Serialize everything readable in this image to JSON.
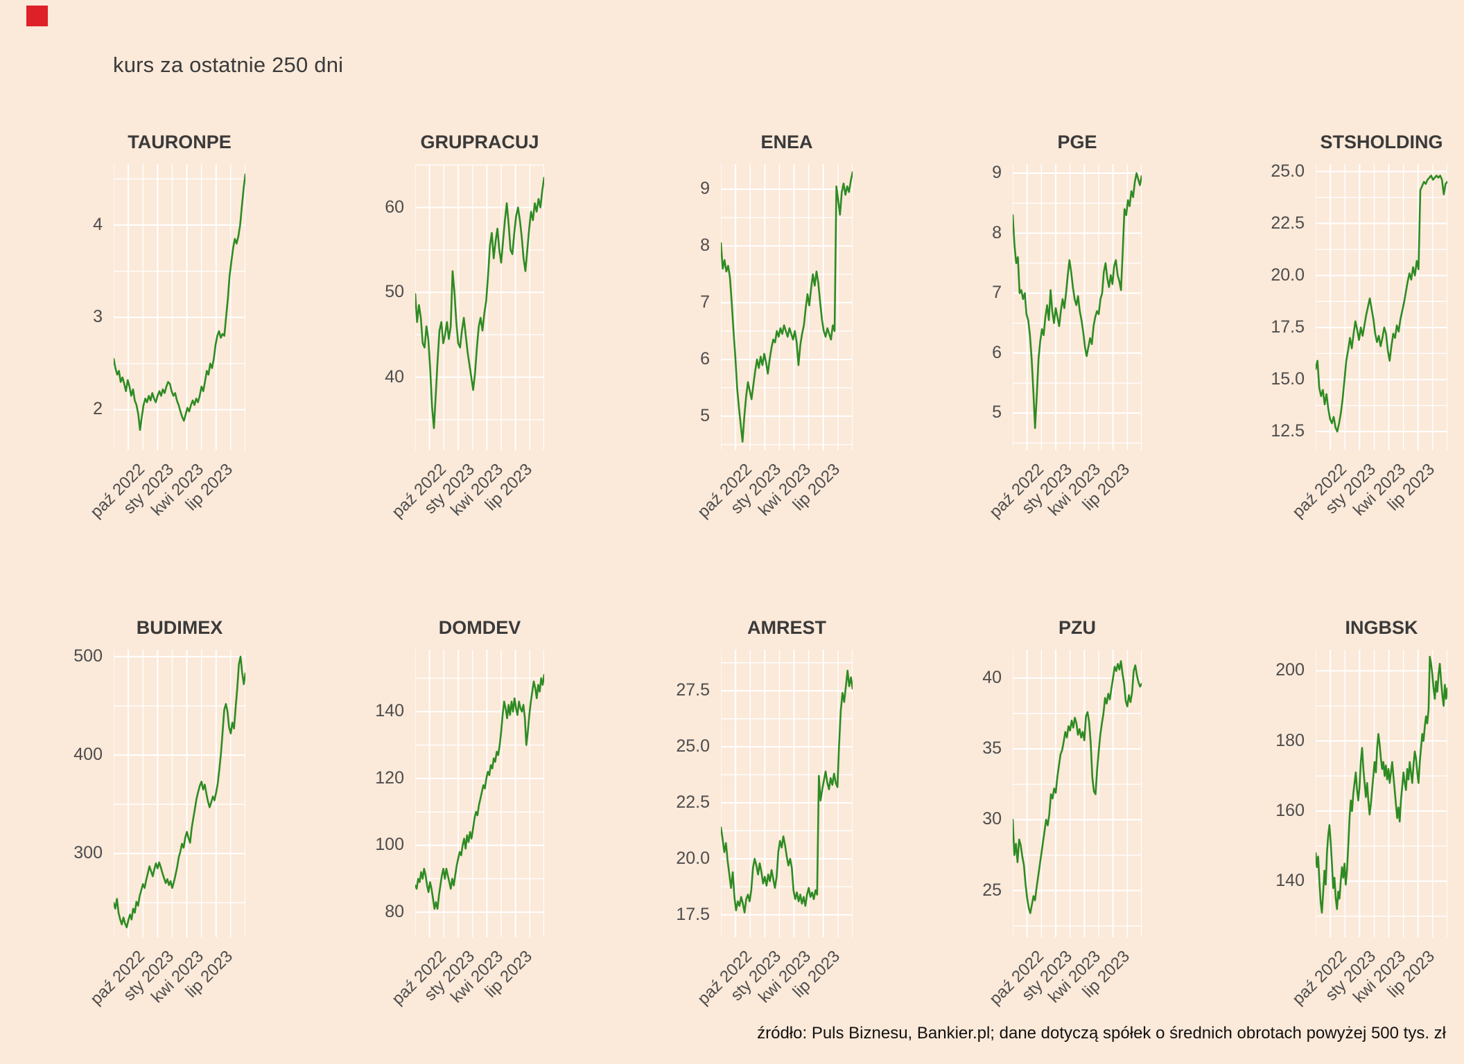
{
  "page": {
    "title": "kurs za ostatnie 250 dni",
    "source_note": "źródło: Puls Biznesu, Bankier.pl; dane dotyczą spółek o średnich obrotach powyżej 500 tys. zł",
    "colors": {
      "background": "#fbe9d9",
      "line": "#2d8b22",
      "grid": "#ffffff",
      "title_text": "#3a3a3a",
      "axis_text": "#4d4d4d",
      "note_text": "#111111",
      "marker": "#de2128"
    }
  },
  "x_tick_labels": [
    "paź 2022",
    "sty 2023",
    "kwi 2023",
    "lip 2023"
  ],
  "chart_data": [
    {
      "type": "line",
      "title": "TAURONPE",
      "ylim": [
        1.56,
        4.66
      ],
      "y_ticks": [
        2,
        3,
        4
      ],
      "y_tick_labels": [
        "2",
        "3",
        "4"
      ],
      "values": [
        2.55,
        2.45,
        2.38,
        2.42,
        2.3,
        2.35,
        2.28,
        2.2,
        2.32,
        2.25,
        2.15,
        2.22,
        2.1,
        2.05,
        1.95,
        1.78,
        1.92,
        2.05,
        2.12,
        2.08,
        2.15,
        2.1,
        2.18,
        2.12,
        2.08,
        2.15,
        2.2,
        2.15,
        2.22,
        2.18,
        2.25,
        2.3,
        2.28,
        2.2,
        2.15,
        2.18,
        2.1,
        2.05,
        1.98,
        1.92,
        1.88,
        1.95,
        2.02,
        1.98,
        2.05,
        2.1,
        2.05,
        2.12,
        2.08,
        2.15,
        2.25,
        2.2,
        2.3,
        2.42,
        2.38,
        2.5,
        2.45,
        2.55,
        2.7,
        2.8,
        2.85,
        2.78,
        2.82,
        2.8,
        3.0,
        3.2,
        3.45,
        3.6,
        3.75,
        3.85,
        3.8,
        3.88,
        4.0,
        4.2,
        4.4,
        4.55
      ]
    },
    {
      "type": "line",
      "title": "GRUPRACUJ",
      "ylim": [
        31.4,
        65.1
      ],
      "y_ticks": [
        40,
        50,
        60
      ],
      "y_tick_labels": [
        "40",
        "50",
        "60"
      ],
      "values": [
        49.8,
        46.5,
        48.5,
        47.0,
        44.0,
        43.5,
        46.0,
        44.5,
        41.0,
        36.5,
        34.0,
        38.0,
        42.0,
        45.5,
        46.5,
        44.0,
        45.0,
        46.5,
        44.5,
        46.0,
        52.5,
        50.0,
        46.5,
        44.0,
        43.5,
        45.5,
        47.0,
        45.0,
        43.0,
        41.5,
        40.0,
        38.5,
        40.5,
        43.5,
        46.0,
        47.0,
        45.5,
        47.5,
        49.0,
        52.0,
        55.5,
        57.0,
        54.0,
        56.0,
        57.5,
        55.0,
        53.5,
        56.0,
        58.5,
        60.5,
        58.0,
        55.0,
        54.5,
        57.0,
        59.0,
        60.0,
        58.5,
        56.5,
        54.0,
        52.5,
        55.0,
        57.5,
        59.5,
        58.5,
        60.5,
        59.5,
        61.0,
        60.0,
        62.0,
        63.5
      ]
    },
    {
      "type": "line",
      "title": "ENEA",
      "ylim": [
        4.4,
        9.44
      ],
      "y_ticks": [
        5,
        6,
        7,
        8,
        9
      ],
      "y_tick_labels": [
        "5",
        "6",
        "7",
        "8",
        "9"
      ],
      "values": [
        8.05,
        7.6,
        7.75,
        7.55,
        7.65,
        7.45,
        7.0,
        6.5,
        6.05,
        5.5,
        5.15,
        4.85,
        4.55,
        5.0,
        5.35,
        5.6,
        5.45,
        5.3,
        5.55,
        5.8,
        6.0,
        5.85,
        6.05,
        5.9,
        6.1,
        5.95,
        5.75,
        6.0,
        6.2,
        6.35,
        6.3,
        6.5,
        6.4,
        6.55,
        6.45,
        6.6,
        6.5,
        6.4,
        6.55,
        6.45,
        6.35,
        6.5,
        6.3,
        5.9,
        6.25,
        6.45,
        6.6,
        6.9,
        7.15,
        6.95,
        7.25,
        7.5,
        7.3,
        7.55,
        7.35,
        7.0,
        6.7,
        6.5,
        6.4,
        6.55,
        6.45,
        6.35,
        6.6,
        6.5,
        9.05,
        8.8,
        8.55,
        8.95,
        9.1,
        8.9,
        9.05,
        8.95,
        9.15,
        9.3
      ]
    },
    {
      "type": "line",
      "title": "PGE",
      "ylim": [
        4.38,
        9.15
      ],
      "y_ticks": [
        5,
        6,
        7,
        8,
        9
      ],
      "y_tick_labels": [
        "5",
        "6",
        "7",
        "8",
        "9"
      ],
      "values": [
        8.3,
        7.8,
        7.5,
        7.6,
        7.0,
        7.05,
        6.9,
        7.0,
        6.65,
        6.55,
        6.3,
        5.9,
        5.35,
        4.75,
        5.3,
        5.9,
        6.2,
        6.4,
        6.3,
        6.6,
        6.8,
        6.55,
        7.05,
        6.7,
        6.5,
        6.75,
        6.6,
        6.45,
        6.7,
        6.9,
        6.75,
        7.0,
        7.3,
        7.55,
        7.35,
        7.1,
        6.9,
        6.8,
        6.95,
        6.7,
        6.55,
        6.35,
        6.1,
        5.95,
        6.1,
        6.25,
        6.15,
        6.45,
        6.6,
        6.7,
        6.65,
        6.9,
        7.0,
        7.35,
        7.5,
        7.25,
        7.1,
        7.3,
        7.15,
        7.45,
        7.55,
        7.3,
        7.2,
        7.05,
        7.7,
        8.4,
        8.3,
        8.55,
        8.45,
        8.7,
        8.6,
        8.85,
        9.0,
        8.9,
        8.8,
        8.95
      ]
    },
    {
      "type": "line",
      "title": "STSHOLDING",
      "ylim": [
        11.6,
        25.35
      ],
      "y_ticks": [
        12.5,
        15.0,
        17.5,
        20.0,
        22.5,
        25.0
      ],
      "y_tick_labels": [
        "12.5",
        "15.0",
        "17.5",
        "20.0",
        "22.5",
        "25.0"
      ],
      "values": [
        15.5,
        15.9,
        14.6,
        14.2,
        14.5,
        13.8,
        14.3,
        13.6,
        13.1,
        12.9,
        13.2,
        12.7,
        12.5,
        12.9,
        13.4,
        14.1,
        15.0,
        15.9,
        16.4,
        17.0,
        16.5,
        17.2,
        17.8,
        17.4,
        16.9,
        17.5,
        17.1,
        17.6,
        18.1,
        18.5,
        18.9,
        18.4,
        17.9,
        17.2,
        16.8,
        17.1,
        16.6,
        17.0,
        17.5,
        17.2,
        16.4,
        15.9,
        16.6,
        17.2,
        17.0,
        17.6,
        17.3,
        17.9,
        18.3,
        18.7,
        19.2,
        19.7,
        20.1,
        19.8,
        20.4,
        20.0,
        20.7,
        20.3,
        24.1,
        24.3,
        24.5,
        24.4,
        24.6,
        24.7,
        24.8,
        24.6,
        24.7,
        24.8,
        24.7,
        24.8,
        24.6,
        23.9,
        24.4,
        24.5
      ]
    },
    {
      "type": "line",
      "title": "BUDIMEX",
      "ylim": [
        215,
        507
      ],
      "y_ticks": [
        300,
        400,
        500
      ],
      "y_tick_labels": [
        "300",
        "400",
        "500"
      ],
      "values": [
        250,
        244,
        254,
        240,
        233,
        228,
        235,
        229,
        225,
        232,
        238,
        233,
        244,
        240,
        251,
        247,
        257,
        263,
        269,
        265,
        273,
        280,
        287,
        282,
        277,
        284,
        290,
        285,
        291,
        286,
        280,
        275,
        270,
        274,
        268,
        272,
        265,
        271,
        278,
        286,
        296,
        302,
        310,
        306,
        316,
        322,
        316,
        311,
        326,
        336,
        346,
        356,
        363,
        369,
        373,
        365,
        370,
        361,
        353,
        347,
        352,
        358,
        354,
        362,
        371,
        386,
        402,
        424,
        446,
        452,
        444,
        428,
        422,
        433,
        427,
        448,
        468,
        492,
        500,
        484,
        472,
        483
      ]
    },
    {
      "type": "line",
      "title": "DOMDEV",
      "ylim": [
        72.5,
        158.5
      ],
      "y_ticks": [
        80,
        100,
        120,
        140
      ],
      "y_tick_labels": [
        "80",
        "100",
        "120",
        "140"
      ],
      "values": [
        88,
        87,
        90,
        89,
        92,
        90,
        93,
        91,
        88,
        86,
        89,
        87,
        84,
        81,
        83,
        81,
        85,
        88,
        91,
        93,
        90,
        93,
        91,
        89,
        87,
        90,
        88,
        91,
        94,
        96,
        98,
        97,
        100,
        102,
        99,
        103,
        101,
        104,
        102,
        105,
        108,
        110,
        109,
        112,
        114,
        116,
        118,
        117,
        120,
        122,
        121,
        124,
        123,
        126,
        125,
        128,
        127,
        130,
        134,
        139,
        143,
        141,
        138,
        142,
        139,
        143,
        140,
        144,
        141,
        139,
        143,
        141,
        140,
        142,
        138,
        130,
        134,
        139,
        143,
        146,
        149,
        147,
        144,
        148,
        146,
        150,
        148,
        151
      ]
    },
    {
      "type": "line",
      "title": "AMREST",
      "ylim": [
        16.5,
        29.33
      ],
      "y_ticks": [
        17.5,
        20.0,
        22.5,
        25.0,
        27.5
      ],
      "y_tick_labels": [
        "17.5",
        "20.0",
        "22.5",
        "25.0",
        "27.5"
      ],
      "values": [
        21.4,
        20.9,
        20.3,
        20.7,
        19.9,
        19.3,
        18.7,
        19.4,
        18.3,
        17.7,
        18.1,
        17.9,
        18.3,
        18.0,
        17.6,
        18.2,
        18.4,
        18.1,
        18.6,
        19.6,
        20.0,
        19.7,
        19.3,
        19.8,
        19.4,
        18.9,
        19.2,
        18.8,
        19.3,
        19.0,
        19.5,
        19.1,
        18.7,
        19.2,
        20.3,
        20.8,
        20.5,
        21.0,
        20.6,
        20.1,
        19.7,
        20.0,
        19.6,
        18.6,
        18.2,
        18.5,
        18.1,
        18.4,
        18.0,
        18.3,
        17.9,
        18.4,
        18.7,
        18.3,
        18.5,
        18.2,
        18.6,
        18.4,
        23.7,
        22.6,
        23.1,
        23.5,
        23.9,
        23.4,
        23.1,
        23.6,
        23.3,
        23.8,
        23.4,
        23.2,
        25.1,
        26.6,
        27.4,
        27.0,
        27.7,
        28.4,
        27.7,
        28.1,
        27.6
      ]
    },
    {
      "type": "line",
      "title": "PZU",
      "ylim": [
        21.7,
        42.0
      ],
      "y_ticks": [
        25,
        30,
        35,
        40
      ],
      "y_tick_labels": [
        "25",
        "30",
        "35",
        "40"
      ],
      "values": [
        30.0,
        27.5,
        28.3,
        27.0,
        28.6,
        28.2,
        27.4,
        26.8,
        25.5,
        24.5,
        23.8,
        23.4,
        24.0,
        24.6,
        24.3,
        25.2,
        26.0,
        26.8,
        27.6,
        28.4,
        29.2,
        30.0,
        29.6,
        30.4,
        31.8,
        31.5,
        32.2,
        31.9,
        33.0,
        33.8,
        34.6,
        34.9,
        35.5,
        36.2,
        35.8,
        36.6,
        36.3,
        37.0,
        36.5,
        37.2,
        36.8,
        36.0,
        36.4,
        35.8,
        36.2,
        35.6,
        37.3,
        37.6,
        36.9,
        35.4,
        33.0,
        32.0,
        31.8,
        33.5,
        34.8,
        36.0,
        36.8,
        37.5,
        38.6,
        38.2,
        38.9,
        38.5,
        39.3,
        40.0,
        40.8,
        40.5,
        41.0,
        40.6,
        41.2,
        40.3,
        39.6,
        38.4,
        38.0,
        38.8,
        38.3,
        39.0,
        40.5,
        40.9,
        40.2,
        39.7,
        39.4,
        39.6
      ]
    },
    {
      "type": "line",
      "title": "INGBSK",
      "ylim": [
        124,
        206
      ],
      "y_ticks": [
        140,
        160,
        180,
        200
      ],
      "y_tick_labels": [
        "140",
        "160",
        "180",
        "200"
      ],
      "values": [
        148,
        144,
        147,
        140,
        134,
        131,
        137,
        143,
        139,
        148,
        153,
        156,
        151,
        145,
        138,
        141,
        135,
        132,
        137,
        135,
        140,
        144,
        141,
        145,
        139,
        143,
        150,
        158,
        163,
        160,
        165,
        168,
        171,
        166,
        163,
        167,
        174,
        178,
        172,
        168,
        164,
        168,
        163,
        159,
        162,
        166,
        170,
        174,
        171,
        178,
        182,
        179,
        175,
        172,
        174,
        170,
        173,
        169,
        172,
        168,
        171,
        174,
        170,
        166,
        162,
        158,
        161,
        157,
        163,
        167,
        171,
        168,
        166,
        172,
        169,
        174,
        171,
        168,
        173,
        177,
        175,
        171,
        168,
        174,
        178,
        182,
        180,
        184,
        187,
        185,
        189,
        204,
        202,
        199,
        195,
        192,
        197,
        194,
        199,
        202,
        197,
        193,
        190,
        196,
        192,
        195
      ]
    }
  ]
}
